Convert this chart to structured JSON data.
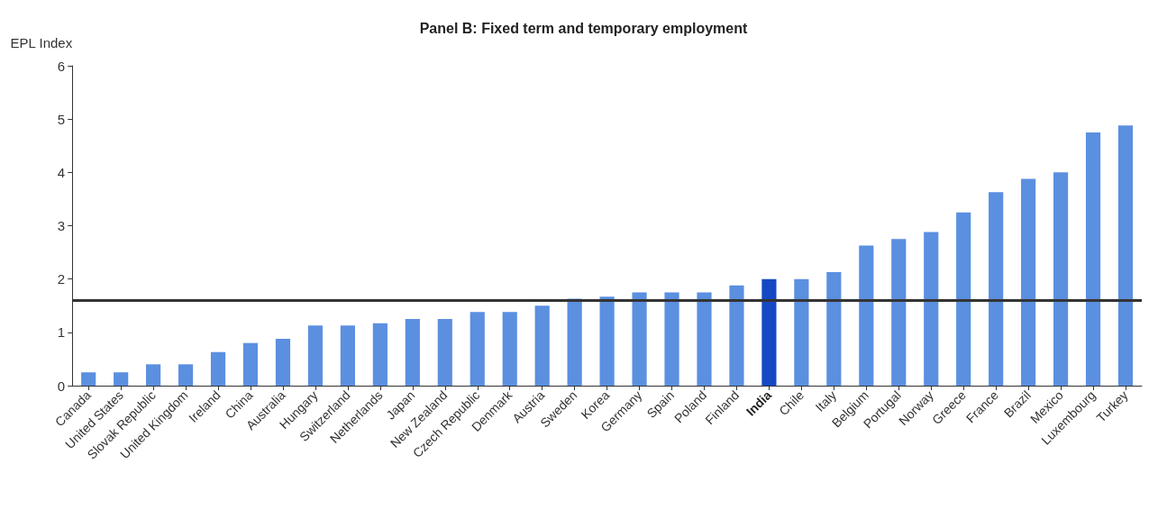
{
  "chart_data": {
    "type": "bar",
    "title": "Panel B: Fixed term and temporary employment",
    "ylabel": "EPL Index",
    "categories": [
      "Canada",
      "United States",
      "Slovak Republic",
      "United Kingdom",
      "Ireland",
      "China",
      "Australia",
      "Hungary",
      "Switzerland",
      "Netherlands",
      "Japan",
      "New Zealand",
      "Czech Republic",
      "Denmark",
      "Austria",
      "Sweden",
      "Korea",
      "Germany",
      "Spain",
      "Poland",
      "Finland",
      "India",
      "Chile",
      "Italy",
      "Belgium",
      "Portugal",
      "Norway",
      "Greece",
      "France",
      "Brazil",
      "Mexico",
      "Luxembourg",
      "Turkey"
    ],
    "values": [
      0.25,
      0.25,
      0.4,
      0.4,
      0.63,
      0.8,
      0.88,
      1.13,
      1.13,
      1.17,
      1.25,
      1.25,
      1.38,
      1.38,
      1.5,
      1.63,
      1.67,
      1.75,
      1.75,
      1.75,
      1.88,
      2.0,
      2.0,
      2.13,
      2.63,
      2.75,
      2.88,
      3.25,
      3.63,
      3.88,
      4.0,
      4.75,
      4.88
    ],
    "colors": [
      "#5b8fe0",
      "#5b8fe0",
      "#5b8fe0",
      "#5b8fe0",
      "#5b8fe0",
      "#5b8fe0",
      "#5b8fe0",
      "#5b8fe0",
      "#5b8fe0",
      "#5b8fe0",
      "#5b8fe0",
      "#5b8fe0",
      "#5b8fe0",
      "#5b8fe0",
      "#5b8fe0",
      "#5b8fe0",
      "#5b8fe0",
      "#5b8fe0",
      "#5b8fe0",
      "#5b8fe0",
      "#5b8fe0",
      "#1648c4",
      "#5b8fe0",
      "#5b8fe0",
      "#5b8fe0",
      "#5b8fe0",
      "#5b8fe0",
      "#5b8fe0",
      "#5b8fe0",
      "#5b8fe0",
      "#5b8fe0",
      "#5b8fe0",
      "#5b8fe0"
    ],
    "ylim": [
      0,
      6
    ],
    "yticks": [
      0,
      1,
      2,
      3,
      4,
      5,
      6
    ],
    "grid": false,
    "ref_lines": [
      {
        "axis": "y",
        "value": 1.6,
        "label": null,
        "color": "#333333"
      }
    ]
  }
}
